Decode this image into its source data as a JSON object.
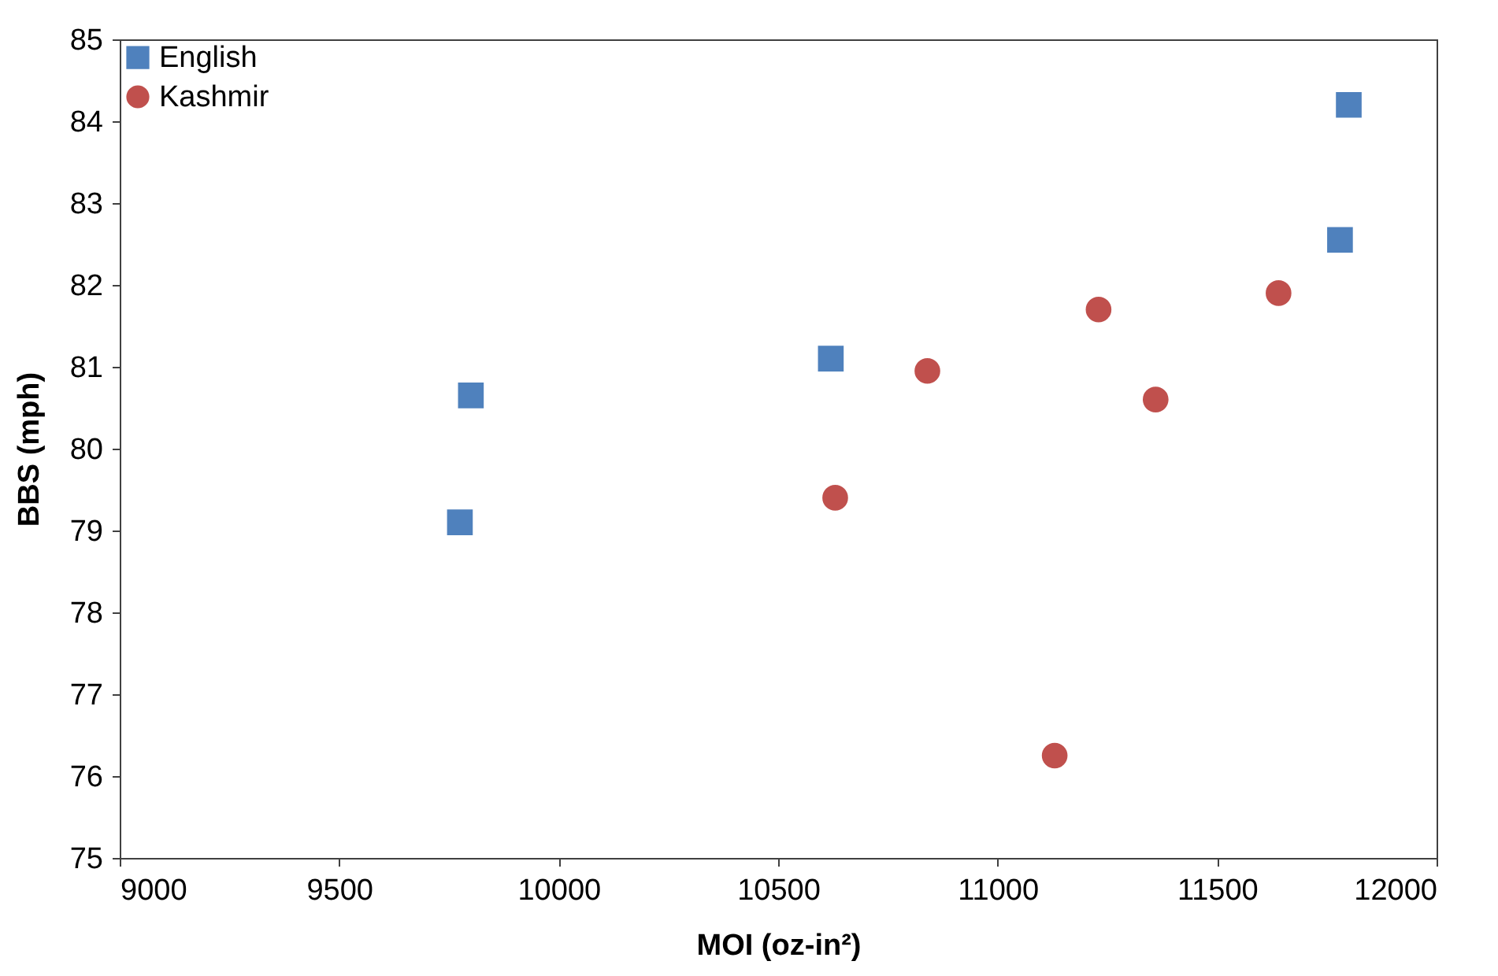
{
  "chart_data": {
    "type": "scatter",
    "xlabel": "MOI (oz-in²)",
    "ylabel": "BBS (mph)",
    "xlim": [
      9000,
      12000
    ],
    "xticks": [
      9000,
      9500,
      10000,
      10500,
      11000,
      11500,
      12000
    ],
    "ylim": [
      75,
      85
    ],
    "yticks": [
      75,
      76,
      77,
      78,
      79,
      80,
      81,
      82,
      83,
      84,
      85
    ],
    "grid": false,
    "legend": "top left",
    "series": [
      {
        "name": "English",
        "color": "#4f81bd",
        "marker": "square",
        "x": [
          9775,
          9800,
          10620,
          11780,
          11800
        ],
        "values": [
          79.1,
          80.65,
          81.1,
          82.55,
          84.2
        ]
      },
      {
        "name": "Kashmir",
        "color": "#c0504d",
        "marker": "circle",
        "x": [
          10630,
          10840,
          11130,
          11230,
          11360,
          11640
        ],
        "values": [
          79.4,
          80.95,
          76.25,
          81.7,
          80.6,
          81.9
        ]
      }
    ]
  }
}
